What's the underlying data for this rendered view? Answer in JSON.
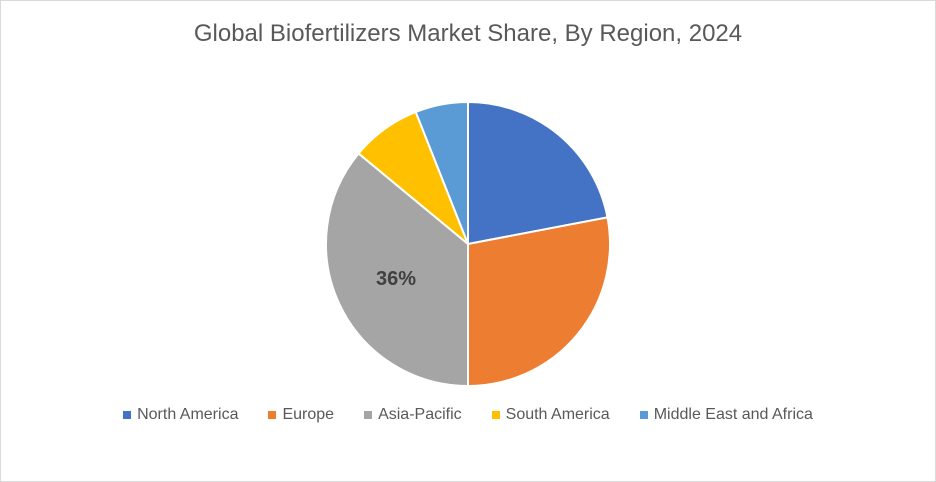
{
  "chart_data": {
    "type": "pie",
    "title": "Global Biofertilizers Market Share, By Region, 2024",
    "categories": [
      "North America",
      "Europe",
      "Asia-Pacific",
      "South America",
      "Middle East and Africa"
    ],
    "values": [
      22,
      28,
      36,
      8,
      6
    ],
    "colors": [
      "#4472c4",
      "#ed7d31",
      "#a5a5a5",
      "#ffc000",
      "#5b9bd5"
    ],
    "data_labels": [
      "",
      "",
      "36%",
      "",
      ""
    ],
    "start_angle_deg": 0,
    "direction": "clockwise",
    "legend_position": "bottom"
  }
}
